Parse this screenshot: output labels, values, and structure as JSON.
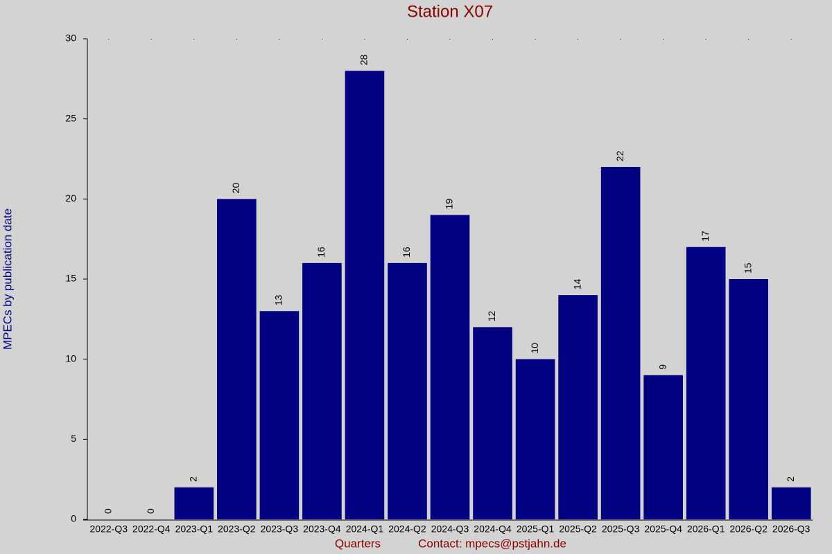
{
  "chart_data": {
    "type": "bar",
    "title": "Station X07",
    "y_label": "MPECs by publication date",
    "x_label": "Quarters",
    "contact": "Contact: mpecs@pstjahn.de",
    "categories": [
      "2022-Q3",
      "2022-Q4",
      "2023-Q1",
      "2023-Q2",
      "2023-Q3",
      "2023-Q4",
      "2024-Q1",
      "2024-Q2",
      "2024-Q3",
      "2024-Q4",
      "2025-Q1",
      "2025-Q2",
      "2025-Q3",
      "2025-Q4",
      "2026-Q1",
      "2026-Q2",
      "2026-Q3"
    ],
    "values": [
      0,
      0,
      2,
      20,
      13,
      16,
      28,
      16,
      19,
      12,
      10,
      14,
      22,
      9,
      17,
      15,
      2
    ],
    "color": "#000080",
    "ylim": [
      0,
      30
    ],
    "yticks": [
      0,
      5,
      10,
      15,
      20,
      25,
      30
    ],
    "grid": false
  }
}
